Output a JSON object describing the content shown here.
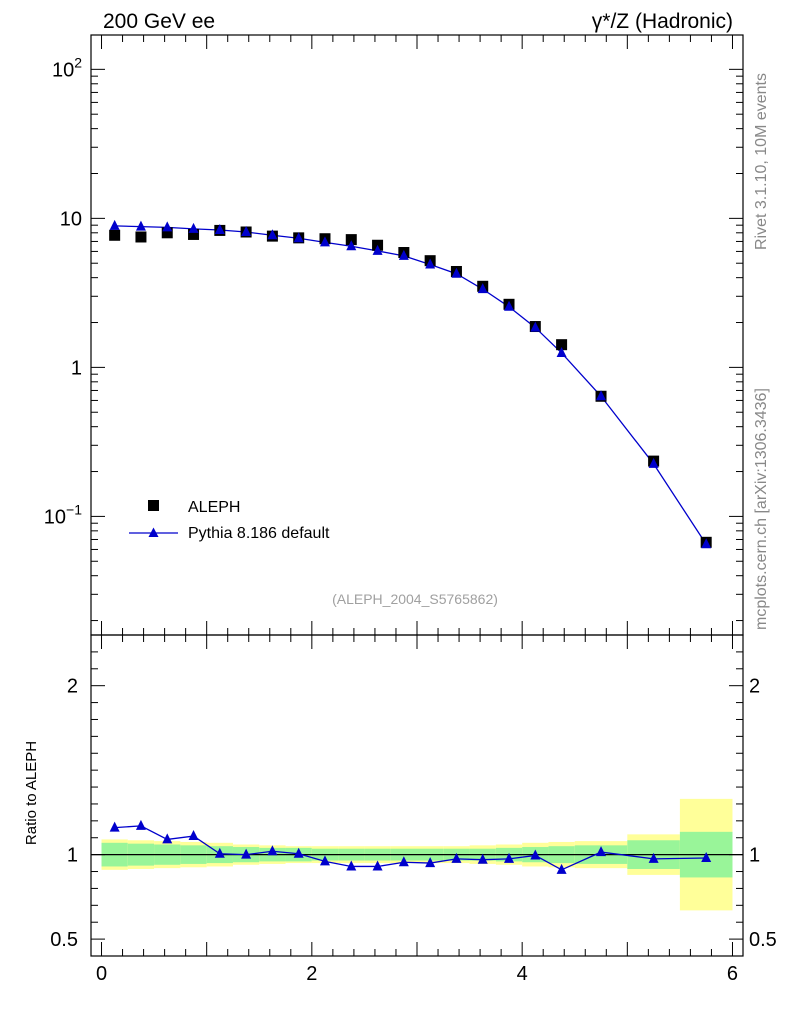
{
  "header": {
    "left_title": "200 GeV ee",
    "right_title": "γ*/Z (Hadronic)"
  },
  "side_labels": {
    "rivet": "Rivet 3.1.10,  10M events",
    "mcplots": "mcplots.cern.ch [arXiv:1306.3436]"
  },
  "analysis_tag": "(ALEPH_2004_S5765862)",
  "legend": {
    "data_label": "ALEPH",
    "mc_label": "Pythia 8.186 default"
  },
  "ratio_ylabel": "Ratio to ALEPH",
  "colors": {
    "data": "#000000",
    "mc": "#0000cc",
    "band_inner": "#99f599",
    "band_outer": "#ffff99"
  },
  "chart_data": [
    {
      "type": "scatter",
      "panel": "main",
      "yscale": "log",
      "xlim": [
        -0.1,
        6.1
      ],
      "ylim": [
        0.016,
        170
      ],
      "ytick_labels": [
        "10^-1",
        "1",
        "10",
        "10^2"
      ],
      "series": [
        {
          "name": "ALEPH",
          "marker": "square",
          "x": [
            0.125,
            0.375,
            0.625,
            0.875,
            1.125,
            1.375,
            1.625,
            1.875,
            2.125,
            2.375,
            2.625,
            2.875,
            3.125,
            3.375,
            3.625,
            3.875,
            4.125,
            4.375,
            4.75,
            5.25,
            5.75
          ],
          "values": [
            7.7,
            7.5,
            8.0,
            7.8,
            8.3,
            8.1,
            7.6,
            7.4,
            7.3,
            7.2,
            6.6,
            5.9,
            5.2,
            4.4,
            3.5,
            2.65,
            1.88,
            1.42,
            0.64,
            0.235,
            0.067
          ]
        },
        {
          "name": "Pythia 8.186 default",
          "marker": "triangle",
          "x": [
            0.125,
            0.375,
            0.625,
            0.875,
            1.125,
            1.375,
            1.625,
            1.875,
            2.125,
            2.375,
            2.625,
            2.875,
            3.125,
            3.375,
            3.625,
            3.875,
            4.125,
            4.375,
            4.75,
            5.25,
            5.75
          ],
          "values": [
            8.9,
            8.8,
            8.7,
            8.5,
            8.35,
            8.1,
            7.7,
            7.35,
            6.9,
            6.5,
            6.05,
            5.6,
            4.9,
            4.25,
            3.35,
            2.55,
            1.85,
            1.25,
            0.64,
            0.225,
            0.065
          ]
        }
      ]
    },
    {
      "type": "line",
      "panel": "ratio",
      "xlim": [
        -0.1,
        6.1
      ],
      "ylim": [
        0.4,
        2.3
      ],
      "xtick_labels": [
        "0",
        "2",
        "4",
        "6"
      ],
      "ytick_labels": [
        "0.5",
        "1",
        "2"
      ],
      "ylabel": "Ratio to ALEPH",
      "series": [
        {
          "name": "Pythia 8.186 default / ALEPH",
          "x": [
            0.125,
            0.375,
            0.625,
            0.875,
            1.125,
            1.375,
            1.625,
            1.875,
            2.125,
            2.375,
            2.625,
            2.875,
            3.125,
            3.375,
            3.625,
            3.875,
            4.125,
            4.375,
            4.75,
            5.25,
            5.75
          ],
          "values": [
            1.16,
            1.17,
            1.09,
            1.11,
            1.005,
            1.0,
            1.02,
            1.005,
            0.96,
            0.93,
            0.93,
            0.955,
            0.95,
            0.975,
            0.97,
            0.975,
            0.995,
            0.91,
            1.015,
            0.975,
            0.98
          ]
        }
      ],
      "band_bins": [
        0,
        0.25,
        0.5,
        0.75,
        1.0,
        1.25,
        1.5,
        1.75,
        2.0,
        2.25,
        2.5,
        2.75,
        3.0,
        3.25,
        3.5,
        3.75,
        4.0,
        4.25,
        4.5,
        5.0,
        5.5,
        6.0
      ],
      "band_inner": [
        0.07,
        0.065,
        0.06,
        0.055,
        0.05,
        0.045,
        0.04,
        0.04,
        0.035,
        0.035,
        0.035,
        0.035,
        0.035,
        0.035,
        0.035,
        0.04,
        0.045,
        0.05,
        0.055,
        0.085,
        0.135
      ],
      "band_outer": [
        0.09,
        0.085,
        0.08,
        0.075,
        0.07,
        0.06,
        0.055,
        0.05,
        0.05,
        0.05,
        0.05,
        0.05,
        0.05,
        0.05,
        0.055,
        0.06,
        0.07,
        0.075,
        0.08,
        0.12,
        0.33
      ]
    }
  ]
}
